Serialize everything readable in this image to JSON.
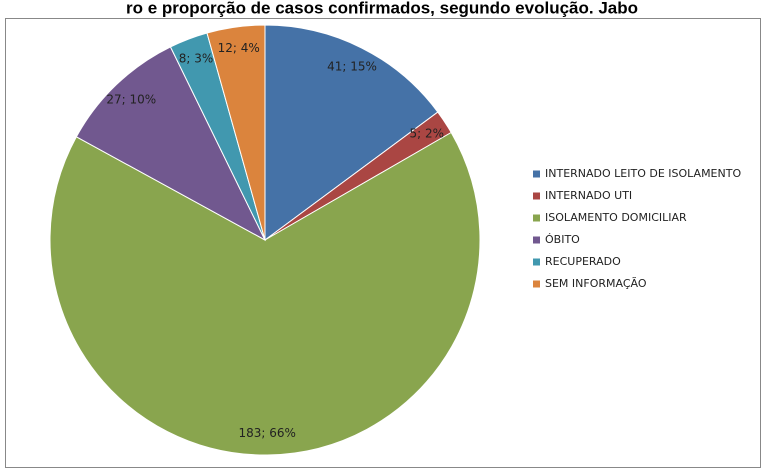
{
  "chart_data": {
    "type": "pie",
    "title": "ro e proporção de casos confirmados, segundo evolução. Jabo",
    "categories": [
      "INTERNADO LEITO DE ISOLAMENTO",
      "INTERNADO UTI",
      "ISOLAMENTO DOMICILIAR",
      "ÓBITO",
      "RECUPERADO",
      "SEM INFORMAÇÃO"
    ],
    "values": [
      41,
      5,
      183,
      27,
      8,
      12
    ],
    "value_labels": [
      "41; 15%",
      "5; 2%",
      "183; 66%",
      "27; 10%",
      "8; 3%",
      "12; 4%"
    ],
    "colors": [
      "#4572a7",
      "#aa4643",
      "#89a54e",
      "#71588f",
      "#4198af",
      "#db843d"
    ],
    "legend": "right"
  }
}
